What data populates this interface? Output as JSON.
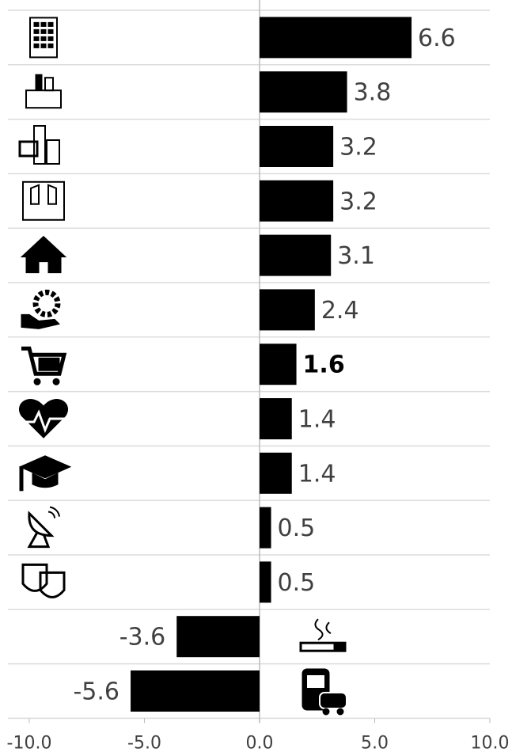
{
  "chart_data": {
    "type": "bar",
    "orientation": "horizontal",
    "categories": [
      null,
      null,
      null,
      null,
      null,
      null,
      null,
      null,
      null,
      null,
      null,
      null,
      null
    ],
    "values": [
      6.6,
      3.8,
      3.2,
      3.2,
      3.1,
      2.4,
      1.6,
      1.4,
      1.4,
      0.5,
      0.5,
      -3.6,
      -5.6
    ],
    "color": "#000000",
    "highlight": 6,
    "xlim": [
      -10,
      10
    ],
    "xticks": [
      {
        "value": -10,
        "label": "-10.0"
      },
      {
        "value": -5,
        "label": "-5.0"
      },
      {
        "value": 0,
        "label": "0.0"
      },
      {
        "value": 5,
        "label": "5.0"
      },
      {
        "value": 10,
        "label": "10.0"
      }
    ],
    "grid": true
  }
}
